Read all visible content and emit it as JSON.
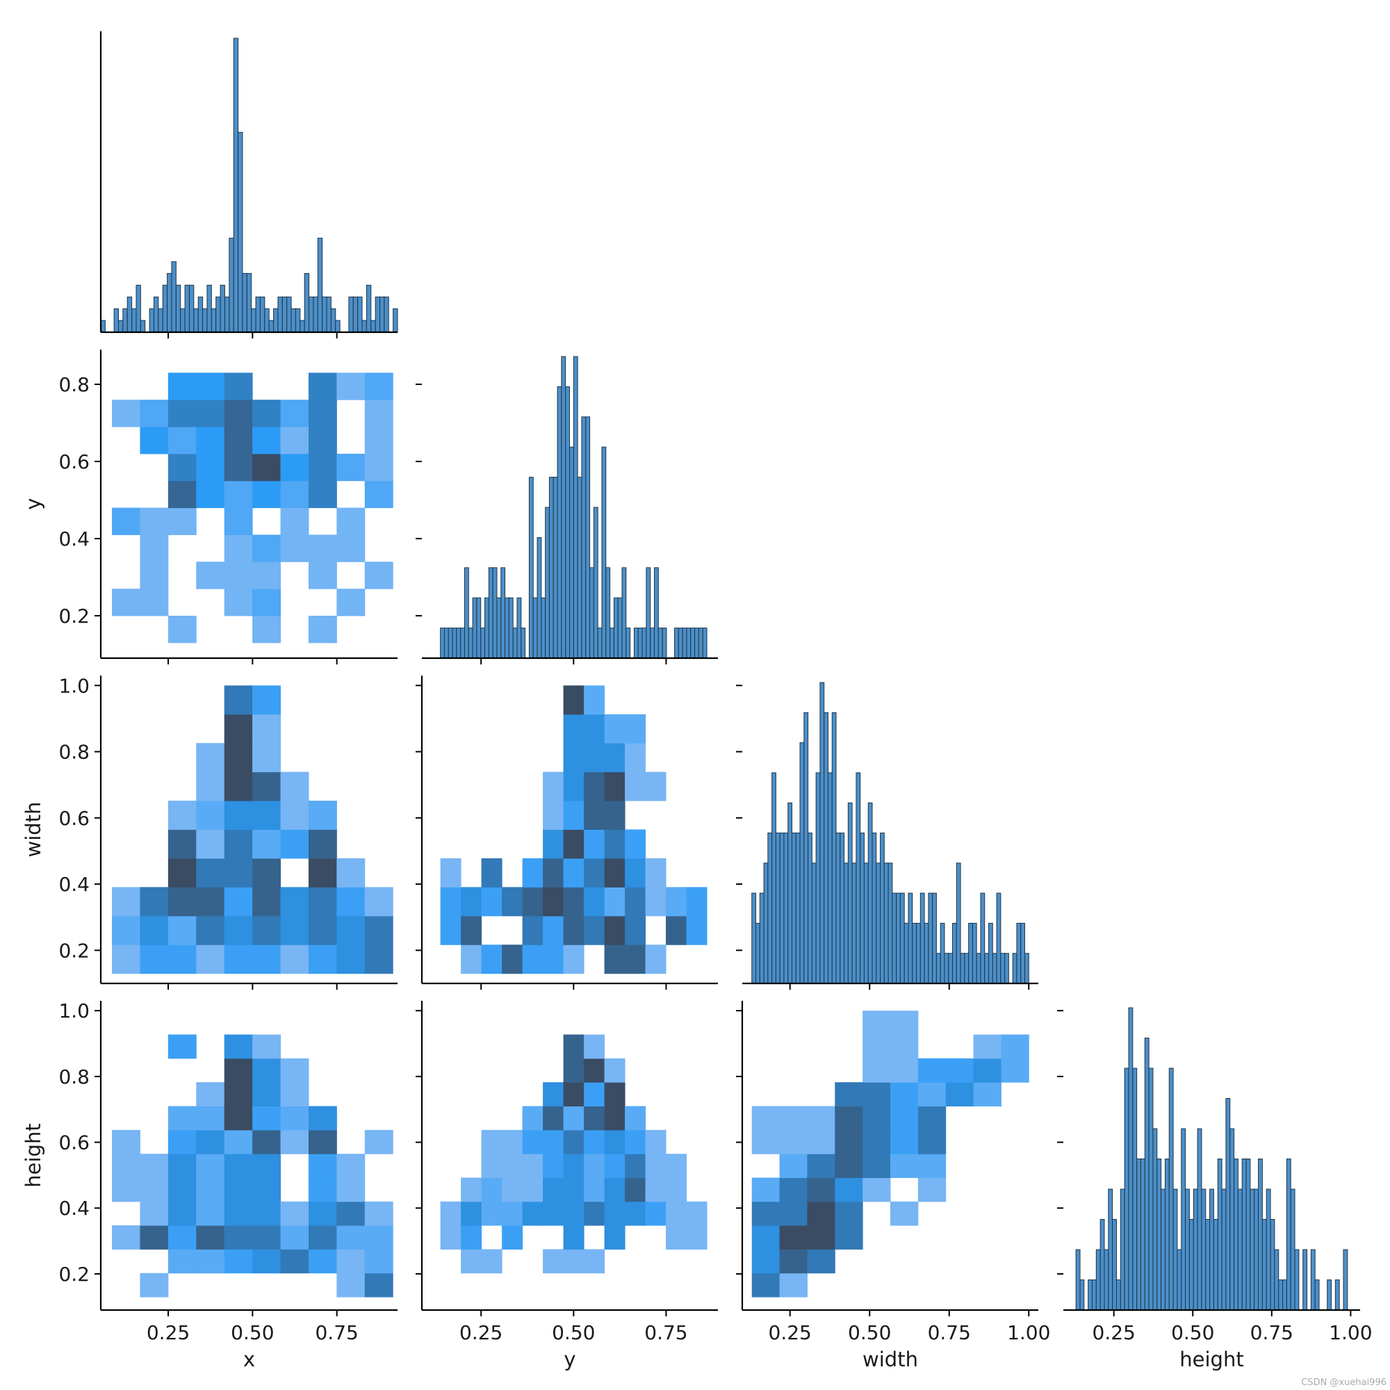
{
  "watermark": "CSDN @xuehai996",
  "colors": {
    "hist_fill": "#4c8fc8",
    "hist_edge": "#1f3448",
    "heat_low": [
      150,
      192,
      244
    ],
    "heat_mid": [
      44,
      155,
      245
    ],
    "heat_high": [
      58,
      76,
      100
    ]
  },
  "chart_data": {
    "type": "pairplot",
    "variables": [
      "x",
      "y",
      "width",
      "height"
    ],
    "axis_labels": {
      "x": "x",
      "y": "y",
      "width": "width",
      "height": "height"
    },
    "diag_histograms": {
      "x": {
        "range": [
          0.05,
          0.93
        ],
        "counts": [
          1,
          0,
          0,
          2,
          1,
          2,
          3,
          2,
          4,
          1,
          0,
          2,
          3,
          2,
          4,
          5,
          6,
          4,
          2,
          4,
          4,
          2,
          3,
          2,
          4,
          2,
          3,
          4,
          3,
          8,
          25,
          17,
          5,
          5,
          2,
          3,
          3,
          2,
          1,
          2,
          3,
          3,
          3,
          2,
          2,
          1,
          5,
          3,
          3,
          8,
          3,
          3,
          2,
          1,
          0,
          0,
          3,
          3,
          3,
          1,
          4,
          1,
          3,
          3,
          3,
          0,
          2
        ]
      },
      "y": {
        "range": [
          0.14,
          0.86
        ],
        "counts": [
          1,
          1,
          1,
          1,
          1,
          1,
          3,
          1,
          2,
          2,
          1,
          2,
          3,
          3,
          2,
          3,
          2,
          2,
          1,
          2,
          1,
          0,
          6,
          2,
          4,
          2,
          5,
          6,
          6,
          9,
          10,
          9,
          7,
          10,
          6,
          8,
          8,
          3,
          5,
          1,
          7,
          3,
          1,
          2,
          2,
          3,
          1,
          0,
          1,
          1,
          1,
          3,
          1,
          3,
          1,
          1,
          0,
          0,
          1,
          1,
          1,
          1,
          1,
          1,
          1,
          1
        ]
      },
      "width": {
        "range": [
          0.13,
          1.0
        ],
        "counts": [
          3,
          2,
          3,
          4,
          5,
          7,
          5,
          5,
          5,
          6,
          5,
          5,
          8,
          9,
          5,
          4,
          7,
          10,
          9,
          7,
          9,
          5,
          5,
          4,
          6,
          4,
          7,
          5,
          4,
          6,
          5,
          4,
          5,
          4,
          4,
          3,
          3,
          3,
          2,
          3,
          2,
          2,
          3,
          2,
          3,
          3,
          1,
          2,
          1,
          1,
          2,
          4,
          1,
          1,
          2,
          2,
          1,
          3,
          1,
          2,
          1,
          3,
          1,
          1,
          0,
          1,
          2,
          2,
          1
        ]
      },
      "height": {
        "range": [
          0.13,
          0.99
        ],
        "counts": [
          2,
          1,
          0,
          1,
          1,
          2,
          3,
          2,
          4,
          3,
          1,
          4,
          8,
          10,
          8,
          5,
          5,
          9,
          8,
          6,
          5,
          4,
          5,
          8,
          4,
          2,
          6,
          4,
          3,
          4,
          6,
          4,
          3,
          4,
          3,
          5,
          4,
          7,
          6,
          5,
          4,
          5,
          5,
          4,
          4,
          5,
          3,
          4,
          3,
          2,
          1,
          1,
          5,
          4,
          2,
          0,
          2,
          0,
          2,
          1,
          0,
          0,
          1,
          0,
          1,
          0,
          2
        ]
      }
    },
    "ranges": {
      "x": [
        0.05,
        0.93
      ],
      "y": [
        0.09,
        0.89
      ],
      "width": [
        0.1,
        1.03
      ],
      "height": [
        0.09,
        1.03
      ]
    },
    "ticks": {
      "x": [
        0.25,
        0.5,
        0.75
      ],
      "y_bottom": [
        0.25,
        0.5,
        0.75
      ],
      "y_left": [
        0.2,
        0.4,
        0.6,
        0.8
      ],
      "width_bottom": [
        0.25,
        0.5,
        0.75,
        1.0
      ],
      "width_left": [
        0.2,
        0.4,
        0.6,
        0.8,
        1.0
      ],
      "height_bottom": [
        0.25,
        0.5,
        0.75,
        1.0
      ],
      "height_left": [
        0.2,
        0.4,
        0.6,
        0.8,
        1.0
      ]
    },
    "tick_labels": {
      "x": [
        "0.25",
        "0.50",
        "0.75"
      ],
      "y_bottom": [
        "0.25",
        "0.50",
        "0.75"
      ],
      "y_left": [
        "0.2",
        "0.4",
        "0.6",
        "0.8"
      ],
      "width_bottom": [
        "0.25",
        "0.50",
        "0.75",
        "1.00"
      ],
      "width_left": [
        "0.2",
        "0.4",
        "0.6",
        "0.8",
        "1.0"
      ],
      "height_bottom": [
        "0.25",
        "0.50",
        "0.75",
        "1.00"
      ],
      "height_left": [
        "0.2",
        "0.4",
        "0.6",
        "0.8",
        "1.0"
      ]
    },
    "heatmaps": [
      {
        "xvar": "x",
        "yvar": "y",
        "xrange": [
          0.083,
          0.916
        ],
        "yrange": [
          0.13,
          0.83
        ],
        "nx": 10,
        "ny": 10,
        "grid": [
          [
            0,
            0,
            1,
            0,
            0,
            1,
            0,
            1,
            0,
            0
          ],
          [
            1,
            1,
            0,
            0,
            1,
            2,
            0,
            0,
            1,
            0
          ],
          [
            0,
            1,
            0,
            1,
            1,
            1,
            0,
            1,
            0,
            1
          ],
          [
            0,
            1,
            0,
            0,
            1,
            2,
            1,
            1,
            1,
            0
          ],
          [
            2,
            1,
            1,
            0,
            2,
            0,
            1,
            0,
            1,
            0
          ],
          [
            0,
            0,
            5,
            3,
            2,
            3,
            2,
            4,
            0,
            2
          ],
          [
            0,
            0,
            4,
            3,
            5,
            6,
            3,
            4,
            2,
            1
          ],
          [
            0,
            3,
            2,
            3,
            5,
            3,
            1,
            4,
            0,
            1
          ],
          [
            1,
            2,
            4,
            4,
            5,
            4,
            2,
            4,
            0,
            1
          ],
          [
            0,
            0,
            3,
            3,
            4,
            0,
            0,
            4,
            1,
            2
          ]
        ]
      },
      {
        "xvar": "x",
        "yvar": "width",
        "xrange": [
          0.083,
          0.916
        ],
        "yrange": [
          0.13,
          1.0
        ],
        "nx": 10,
        "ny": 10,
        "grid": [
          [
            1,
            3,
            3,
            1,
            3,
            3,
            1,
            3,
            4,
            5
          ],
          [
            2,
            4,
            2,
            5,
            4,
            5,
            4,
            5,
            4,
            5
          ],
          [
            1,
            5,
            6,
            6,
            3,
            6,
            4,
            5,
            3,
            1
          ],
          [
            0,
            0,
            7,
            5,
            5,
            6,
            0,
            7,
            1,
            0
          ],
          [
            0,
            0,
            6,
            1,
            5,
            2,
            3,
            6,
            0,
            0
          ],
          [
            0,
            0,
            1,
            2,
            4,
            4,
            1,
            2,
            0,
            0
          ],
          [
            0,
            0,
            0,
            1,
            7,
            6,
            1,
            0,
            0,
            0
          ],
          [
            0,
            0,
            0,
            1,
            7,
            1,
            0,
            0,
            0,
            0
          ],
          [
            0,
            0,
            0,
            0,
            7,
            1,
            0,
            0,
            0,
            0
          ],
          [
            0,
            0,
            0,
            0,
            5,
            3,
            0,
            0,
            0,
            0
          ]
        ]
      },
      {
        "xvar": "y",
        "yvar": "width",
        "xrange": [
          0.14,
          0.86
        ],
        "yrange": [
          0.13,
          1.0
        ],
        "nx": 13,
        "ny": 10,
        "grid": [
          [
            0,
            1,
            3,
            6,
            3,
            3,
            1,
            0,
            6,
            6,
            1,
            0,
            0
          ],
          [
            3,
            6,
            0,
            0,
            5,
            3,
            6,
            5,
            7,
            5,
            0,
            6,
            3
          ],
          [
            3,
            4,
            3,
            5,
            6,
            7,
            6,
            4,
            2,
            5,
            1,
            2,
            3
          ],
          [
            1,
            0,
            5,
            0,
            3,
            6,
            3,
            5,
            7,
            4,
            1,
            0,
            0
          ],
          [
            0,
            0,
            0,
            0,
            0,
            4,
            7,
            3,
            5,
            3,
            0,
            0,
            0
          ],
          [
            0,
            0,
            0,
            0,
            0,
            1,
            3,
            6,
            6,
            0,
            0,
            0,
            0
          ],
          [
            0,
            0,
            0,
            0,
            0,
            1,
            4,
            6,
            7,
            1,
            1,
            0,
            0
          ],
          [
            0,
            0,
            0,
            0,
            0,
            0,
            4,
            4,
            4,
            1,
            0,
            0,
            0
          ],
          [
            0,
            0,
            0,
            0,
            0,
            0,
            4,
            4,
            2,
            2,
            0,
            0,
            0
          ],
          [
            0,
            0,
            0,
            0,
            0,
            0,
            7,
            2,
            0,
            0,
            0,
            0,
            0
          ]
        ]
      },
      {
        "xvar": "x",
        "yvar": "height",
        "xrange": [
          0.083,
          0.916
        ],
        "yrange": [
          0.13,
          1.0
        ],
        "nx": 10,
        "ny": 12,
        "grid": [
          [
            0,
            1,
            0,
            0,
            0,
            0,
            0,
            0,
            1,
            5
          ],
          [
            0,
            0,
            2,
            2,
            3,
            4,
            5,
            3,
            1,
            2
          ],
          [
            1,
            6,
            3,
            6,
            5,
            5,
            2,
            5,
            2,
            2
          ],
          [
            0,
            1,
            4,
            2,
            4,
            4,
            1,
            4,
            5,
            1
          ],
          [
            1,
            1,
            4,
            2,
            4,
            4,
            0,
            3,
            1,
            0
          ],
          [
            1,
            1,
            4,
            2,
            4,
            4,
            0,
            3,
            1,
            0
          ],
          [
            1,
            0,
            3,
            4,
            2,
            6,
            1,
            6,
            0,
            1
          ],
          [
            0,
            0,
            2,
            2,
            7,
            3,
            2,
            4,
            0,
            0
          ],
          [
            0,
            0,
            0,
            1,
            7,
            4,
            1,
            0,
            0,
            0
          ],
          [
            0,
            0,
            0,
            0,
            7,
            4,
            1,
            0,
            0,
            0
          ],
          [
            0,
            0,
            3,
            0,
            4,
            1,
            0,
            0,
            0,
            0
          ],
          [
            0,
            0,
            0,
            0,
            0,
            0,
            0,
            0,
            0,
            0
          ]
        ]
      },
      {
        "xvar": "y",
        "yvar": "height",
        "xrange": [
          0.14,
          0.86
        ],
        "yrange": [
          0.13,
          1.0
        ],
        "nx": 13,
        "ny": 12,
        "grid": [
          [
            0,
            0,
            0,
            0,
            0,
            0,
            0,
            0,
            0,
            0,
            0,
            0,
            0
          ],
          [
            0,
            1,
            1,
            0,
            0,
            1,
            1,
            1,
            0,
            0,
            0,
            0,
            0
          ],
          [
            1,
            3,
            0,
            3,
            0,
            0,
            4,
            0,
            4,
            0,
            0,
            1,
            1
          ],
          [
            1,
            4,
            2,
            2,
            4,
            4,
            4,
            5,
            4,
            4,
            3,
            1,
            1
          ],
          [
            0,
            1,
            2,
            1,
            1,
            4,
            4,
            2,
            4,
            6,
            1,
            1,
            0
          ],
          [
            0,
            0,
            1,
            1,
            1,
            3,
            4,
            2,
            3,
            5,
            1,
            1,
            0
          ],
          [
            0,
            0,
            1,
            1,
            3,
            3,
            5,
            3,
            4,
            3,
            1,
            0,
            0
          ],
          [
            0,
            0,
            0,
            0,
            2,
            6,
            2,
            6,
            7,
            2,
            0,
            0,
            0
          ],
          [
            0,
            0,
            0,
            0,
            0,
            4,
            7,
            3,
            7,
            0,
            0,
            0,
            0
          ],
          [
            0,
            0,
            0,
            0,
            0,
            0,
            6,
            7,
            1,
            0,
            0,
            0,
            0
          ],
          [
            0,
            0,
            0,
            0,
            0,
            0,
            6,
            1,
            0,
            0,
            0,
            0,
            0
          ],
          [
            0,
            0,
            0,
            0,
            0,
            0,
            0,
            0,
            0,
            0,
            0,
            0,
            0
          ]
        ]
      },
      {
        "xvar": "width",
        "yvar": "height",
        "xrange": [
          0.13,
          1.0
        ],
        "yrange": [
          0.13,
          1.0
        ],
        "nx": 10,
        "ny": 12,
        "grid": [
          [
            5,
            1,
            0,
            0,
            0,
            0,
            0,
            0,
            0,
            0
          ],
          [
            4,
            6,
            5,
            0,
            0,
            0,
            0,
            0,
            0,
            0
          ],
          [
            4,
            7,
            7,
            5,
            0,
            0,
            0,
            0,
            0,
            0
          ],
          [
            5,
            5,
            7,
            5,
            0,
            1,
            0,
            0,
            0,
            0
          ],
          [
            2,
            5,
            6,
            4,
            1,
            0,
            1,
            0,
            0,
            0
          ],
          [
            0,
            2,
            5,
            6,
            5,
            2,
            2,
            0,
            0,
            0
          ],
          [
            1,
            1,
            1,
            6,
            5,
            3,
            5,
            0,
            0,
            0
          ],
          [
            1,
            1,
            1,
            6,
            5,
            3,
            5,
            0,
            0,
            0
          ],
          [
            0,
            0,
            0,
            5,
            5,
            3,
            2,
            4,
            2,
            0
          ],
          [
            0,
            0,
            0,
            0,
            1,
            1,
            3,
            3,
            4,
            2
          ],
          [
            0,
            0,
            0,
            0,
            1,
            1,
            0,
            0,
            1,
            2
          ],
          [
            0,
            0,
            0,
            0,
            1,
            1,
            0,
            0,
            0,
            0
          ]
        ]
      }
    ]
  }
}
